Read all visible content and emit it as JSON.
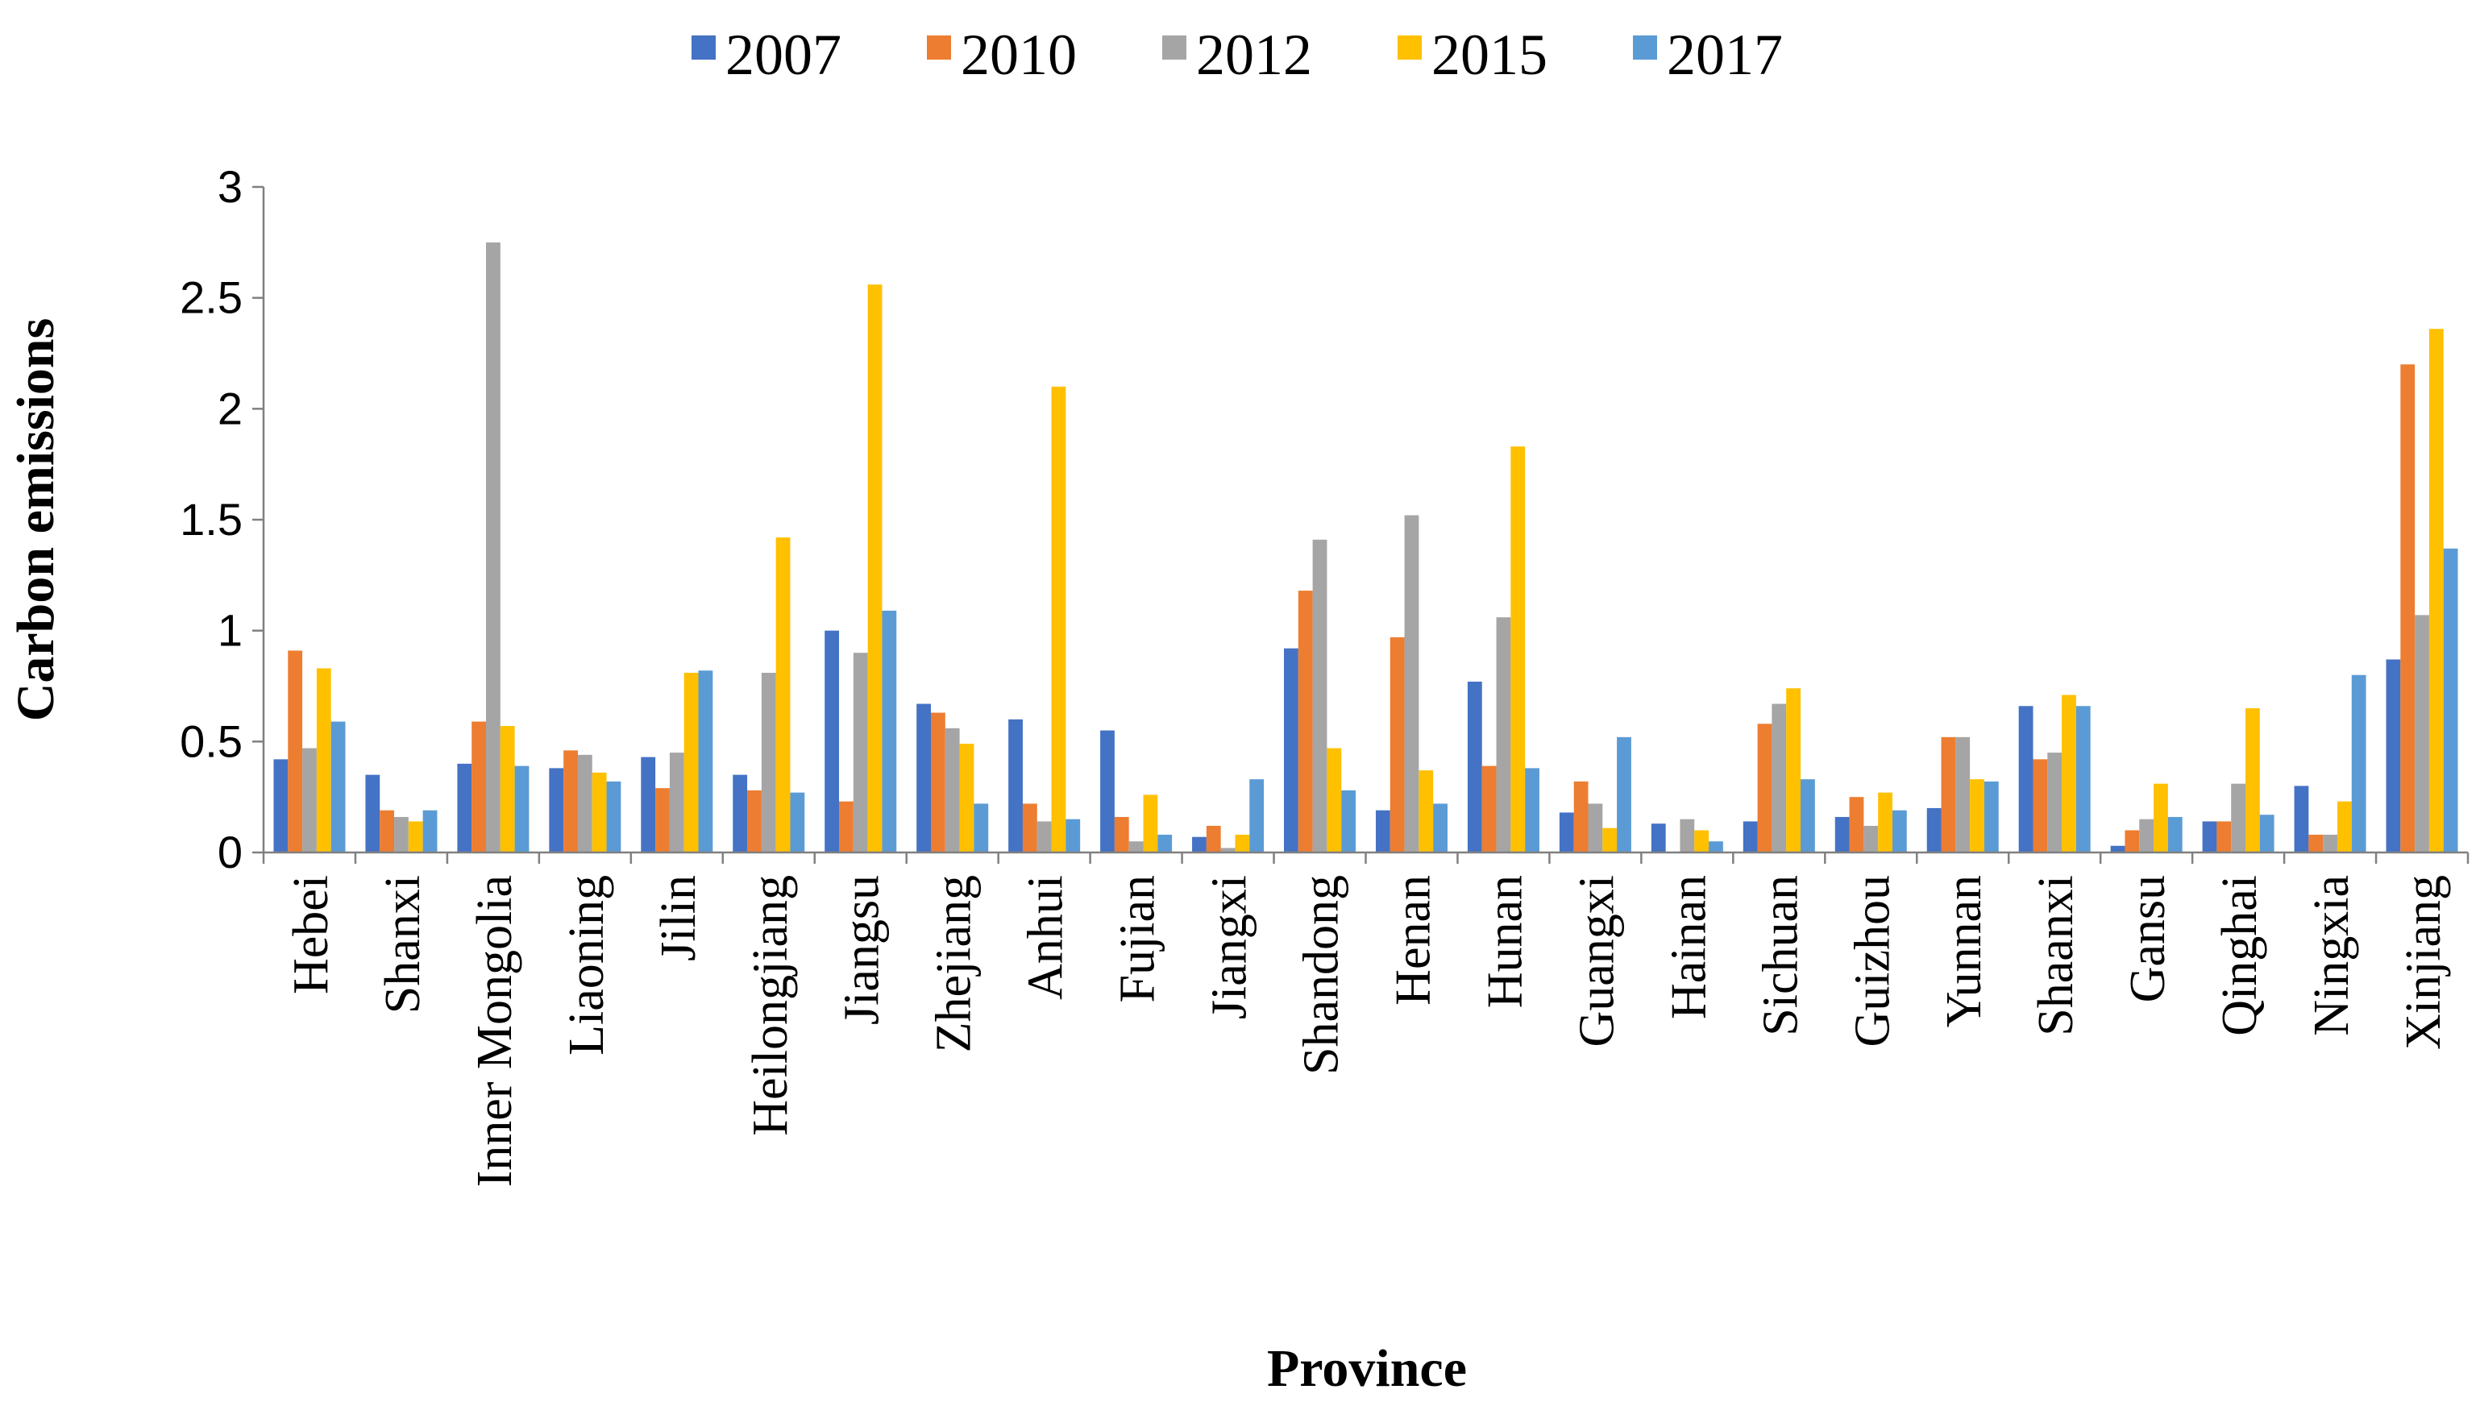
{
  "chart_data": {
    "type": "bar",
    "title": "",
    "xlabel": "Province",
    "ylabel": "Carbon emissions",
    "ylim": [
      0,
      3
    ],
    "yticks": [
      0,
      0.5,
      1,
      1.5,
      2,
      2.5,
      3
    ],
    "ytick_labels": [
      "0",
      "0.5",
      "1",
      "1.5",
      "2",
      "2.5",
      "3"
    ],
    "grid": false,
    "legend_position": "top-center",
    "categories": [
      "Hebei",
      "Shanxi",
      "Inner Mongolia",
      "Liaoning",
      "Jilin",
      "Heilongjiang",
      "Jiangsu",
      "Zhejiang",
      "Anhui",
      "Fujian",
      "Jiangxi",
      "Shandong",
      "Henan",
      "Hunan",
      "Guangxi",
      "Hainan",
      "Sichuan",
      "Guizhou",
      "Yunnan",
      "Shaanxi",
      "Gansu",
      "Qinghai",
      "Ningxia",
      "Xinjiang"
    ],
    "series": [
      {
        "name": "2007",
        "color": "#4472C4",
        "values": [
          0.42,
          0.35,
          0.4,
          0.38,
          0.43,
          0.35,
          1.0,
          0.67,
          0.6,
          0.55,
          0.07,
          0.92,
          0.19,
          0.77,
          0.18,
          0.13,
          0.14,
          0.16,
          0.2,
          0.66,
          0.03,
          0.14,
          0.3,
          0.87
        ]
      },
      {
        "name": "2010",
        "color": "#ED7D31",
        "values": [
          0.91,
          0.19,
          0.59,
          0.46,
          0.29,
          0.28,
          0.23,
          0.63,
          0.22,
          0.16,
          0.12,
          1.18,
          0.97,
          0.39,
          0.32,
          0.0,
          0.58,
          0.25,
          0.52,
          0.42,
          0.1,
          0.14,
          0.08,
          2.2
        ]
      },
      {
        "name": "2012",
        "color": "#A5A5A5",
        "values": [
          0.47,
          0.16,
          2.75,
          0.44,
          0.45,
          0.81,
          0.9,
          0.56,
          0.14,
          0.05,
          0.02,
          1.41,
          1.52,
          1.06,
          0.22,
          0.15,
          0.67,
          0.12,
          0.52,
          0.45,
          0.15,
          0.31,
          0.08,
          1.07
        ]
      },
      {
        "name": "2015",
        "color": "#FFC000",
        "values": [
          0.83,
          0.14,
          0.57,
          0.36,
          0.81,
          1.42,
          2.56,
          0.49,
          2.1,
          0.26,
          0.08,
          0.47,
          0.37,
          1.83,
          0.11,
          0.1,
          0.74,
          0.27,
          0.33,
          0.71,
          0.31,
          0.65,
          0.23,
          2.36
        ]
      },
      {
        "name": "2017",
        "color": "#5B9BD5",
        "values": [
          0.59,
          0.19,
          0.39,
          0.32,
          0.82,
          0.27,
          1.09,
          0.22,
          0.15,
          0.08,
          0.33,
          0.28,
          0.22,
          0.38,
          0.52,
          0.05,
          0.33,
          0.19,
          0.32,
          0.66,
          0.16,
          0.17,
          0.8,
          1.37
        ]
      }
    ]
  }
}
